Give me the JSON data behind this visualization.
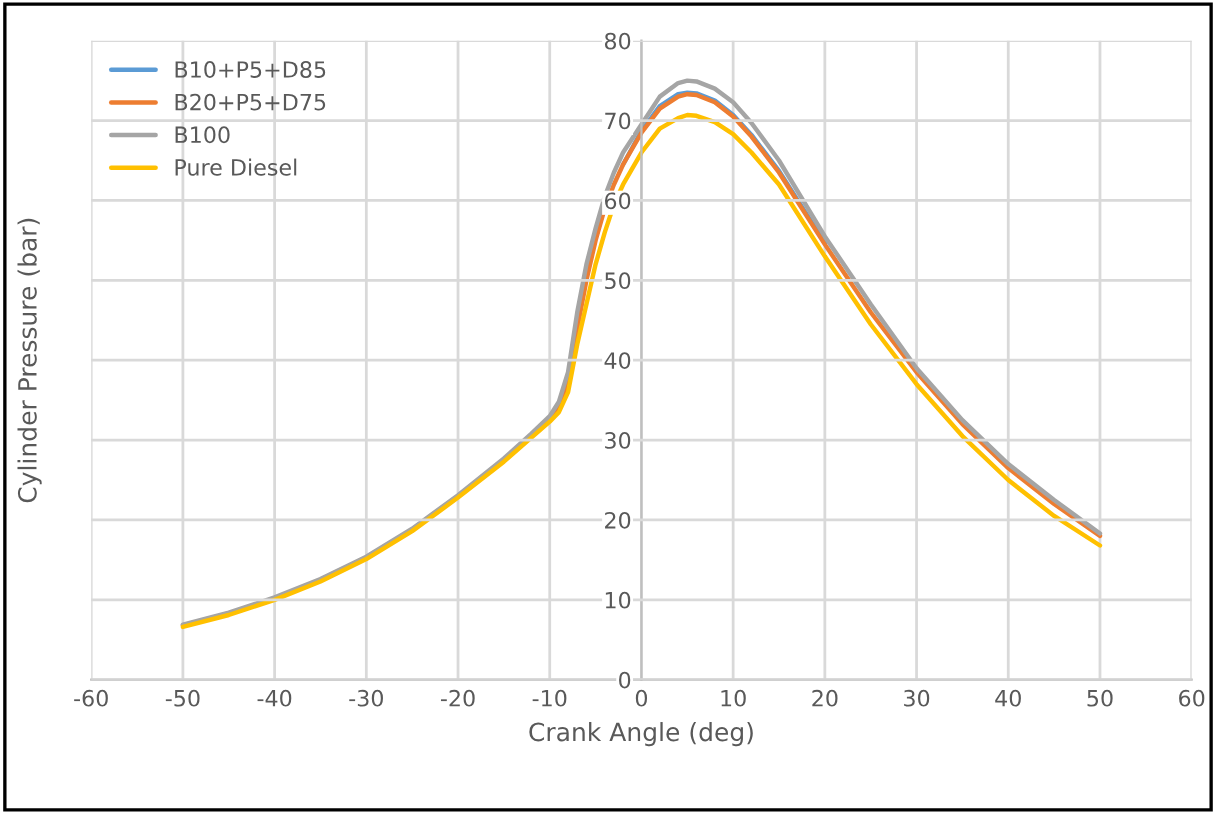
{
  "chart_data": {
    "type": "line",
    "xlabel": "Crank Angle (deg)",
    "ylabel": "Cylinder Pressure (bar)",
    "x": [
      -50,
      -45,
      -40,
      -35,
      -30,
      -25,
      -20,
      -15,
      -12,
      -10,
      -9,
      -8,
      -7,
      -6,
      -5,
      -4,
      -3,
      -2,
      0,
      2,
      4,
      5,
      6,
      8,
      10,
      12,
      15,
      20,
      25,
      30,
      35,
      40,
      45,
      50
    ],
    "series": [
      {
        "name": "B10+P5+D85",
        "color": "#5b9bd5",
        "values": [
          null,
          null,
          null,
          null,
          null,
          null,
          null,
          null,
          null,
          null,
          null,
          null,
          null,
          null,
          null,
          null,
          null,
          64.5,
          68.7,
          71.8,
          73.3,
          73.5,
          73.4,
          72.5,
          70.7,
          68.2,
          63.7,
          54.7,
          null,
          null,
          null,
          null,
          null,
          null
        ]
      },
      {
        "name": "B20+P5+D75",
        "color": "#ed7d31",
        "values": [
          6.8,
          8.3,
          10.2,
          12.5,
          15.3,
          18.8,
          23,
          27.5,
          30.5,
          32.5,
          34,
          37,
          44,
          50,
          55,
          59,
          62,
          64.5,
          68.5,
          71.5,
          73,
          73.3,
          73.2,
          72.3,
          70.5,
          68,
          63.5,
          54.5,
          46,
          38.5,
          32,
          26.5,
          22,
          18
        ]
      },
      {
        "name": "B100",
        "color": "#a5a5a5",
        "values": [
          6.9,
          8.4,
          10.3,
          12.6,
          15.4,
          18.9,
          23.1,
          27.7,
          30.8,
          33,
          34.8,
          38.5,
          46,
          52,
          56.5,
          60.5,
          63.5,
          66,
          69.5,
          73,
          74.7,
          75,
          74.9,
          74,
          72.3,
          69.7,
          65,
          55.5,
          47,
          39,
          32.5,
          27,
          22.5,
          18.3
        ]
      },
      {
        "name": "Pure Diesel",
        "color": "#ffc000",
        "values": [
          6.6,
          8.1,
          10,
          12.3,
          15.1,
          18.6,
          22.8,
          27.3,
          30.3,
          32.3,
          33.5,
          36,
          42,
          47,
          52,
          56,
          59.5,
          62,
          66,
          69,
          70.3,
          70.7,
          70.6,
          69.8,
          68.3,
          66,
          62,
          53,
          44.5,
          37,
          30.5,
          25,
          20.5,
          16.8
        ]
      }
    ],
    "xlim": [
      -60,
      60
    ],
    "xticks": [
      -60,
      -50,
      -40,
      -30,
      -20,
      -10,
      0,
      10,
      20,
      30,
      40,
      50,
      60
    ],
    "ylim": [
      0,
      80
    ],
    "yticks": [
      0,
      10,
      20,
      30,
      40,
      50,
      60,
      70,
      80
    ],
    "grid": true,
    "legend": "top left",
    "marker": "none",
    "line_style": "solid"
  }
}
